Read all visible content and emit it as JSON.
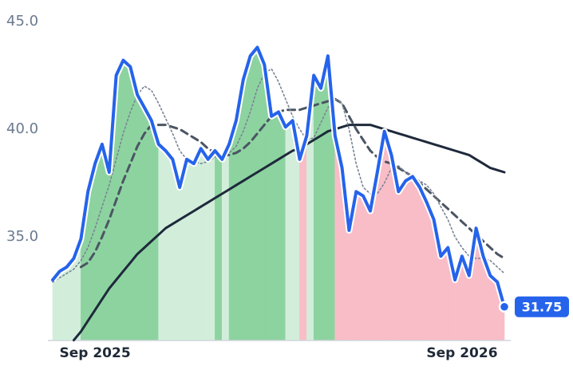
{
  "chart_data": {
    "type": "line",
    "categories": [
      null,
      null,
      null,
      null,
      null,
      null,
      "Sep 2025",
      null,
      null,
      null,
      null,
      null,
      null,
      null,
      null,
      null,
      null,
      null,
      null,
      null,
      null,
      null,
      null,
      null,
      null,
      null,
      null,
      null,
      null,
      null,
      null,
      null,
      null,
      null,
      null,
      null,
      null,
      null,
      null,
      null,
      null,
      null,
      null,
      null,
      null,
      null,
      null,
      null,
      null,
      null,
      null,
      null,
      null,
      null,
      null,
      null,
      null,
      null,
      "Sep 2026",
      null,
      null,
      null,
      null,
      null,
      null
    ],
    "series": [
      {
        "color": "#2563eb",
        "dash": "solid",
        "values": [
          33.0,
          33.4,
          33.6,
          34.0,
          34.9,
          37.1,
          38.4,
          39.3,
          38.0,
          42.5,
          43.2,
          42.9,
          41.6,
          41.0,
          40.4,
          39.3,
          39.0,
          38.6,
          37.3,
          38.6,
          38.4,
          39.1,
          38.6,
          39.0,
          38.6,
          39.3,
          40.4,
          42.3,
          43.4,
          43.8,
          43.0,
          40.6,
          40.8,
          40.1,
          40.4,
          38.6,
          39.7,
          42.5,
          41.9,
          43.4,
          39.7,
          38.2,
          35.3,
          37.1,
          36.9,
          36.2,
          38.0,
          39.9,
          38.8,
          37.1,
          37.6,
          37.8,
          37.3,
          36.6,
          35.8,
          34.1,
          34.5,
          33.0,
          34.1,
          33.2,
          35.4,
          34.1,
          33.2,
          32.9,
          31.75
        ]
      },
      {
        "color": "#7a8494",
        "dash": "dotted",
        "values": [
          32.9,
          33.1,
          33.3,
          33.5,
          33.9,
          34.5,
          35.4,
          36.4,
          37.4,
          38.6,
          39.8,
          40.8,
          41.6,
          42.0,
          41.8,
          41.2,
          40.5,
          39.8,
          39.0,
          38.6,
          38.5,
          38.4,
          38.5,
          38.7,
          38.8,
          38.9,
          39.2,
          39.9,
          40.8,
          41.9,
          42.6,
          42.8,
          42.2,
          41.4,
          40.6,
          40.0,
          39.5,
          39.6,
          40.3,
          41.0,
          41.4,
          41.2,
          40.0,
          38.4,
          37.3,
          37.0,
          37.0,
          37.5,
          38.2,
          38.3,
          38.0,
          37.8,
          37.6,
          37.4,
          37.0,
          36.4,
          35.8,
          35.0,
          34.5,
          34.1,
          34.0,
          34.0,
          33.9,
          33.6,
          33.3
        ]
      },
      {
        "color": "#4b5563",
        "dash": "dashed",
        "values": [
          null,
          null,
          null,
          null,
          33.6,
          33.8,
          34.3,
          35.0,
          35.8,
          36.7,
          37.6,
          38.4,
          39.2,
          39.8,
          40.2,
          40.2,
          40.2,
          40.1,
          40.0,
          39.8,
          39.6,
          39.4,
          39.1,
          38.9,
          38.8,
          38.8,
          38.9,
          39.1,
          39.4,
          39.8,
          40.2,
          40.6,
          40.8,
          40.9,
          40.9,
          40.9,
          41.0,
          41.1,
          41.2,
          41.3,
          41.4,
          41.2,
          40.6,
          40.0,
          39.5,
          39.0,
          38.7,
          38.5,
          38.4,
          38.2,
          38.0,
          37.8,
          37.5,
          37.2,
          36.9,
          36.6,
          36.3,
          36.0,
          35.7,
          35.4,
          35.1,
          34.8,
          34.5,
          34.2,
          34.0
        ]
      },
      {
        "color": "#1e293b",
        "dash": "solid",
        "values": [
          null,
          null,
          null,
          30.2,
          30.6,
          31.1,
          31.6,
          32.1,
          32.6,
          33.0,
          33.4,
          33.8,
          34.2,
          34.5,
          34.8,
          35.1,
          35.4,
          35.6,
          35.8,
          36.0,
          36.2,
          36.4,
          36.6,
          36.8,
          37.0,
          37.2,
          37.4,
          37.6,
          37.8,
          38.0,
          38.2,
          38.4,
          38.6,
          38.8,
          39.0,
          39.1,
          39.3,
          39.5,
          39.7,
          39.9,
          40.0,
          40.1,
          40.2,
          40.2,
          40.2,
          40.2,
          40.1,
          40.0,
          39.9,
          39.8,
          39.7,
          39.6,
          39.5,
          39.4,
          39.3,
          39.2,
          39.1,
          39.0,
          38.9,
          38.8,
          38.6,
          38.4,
          38.2,
          38.1,
          38.0
        ]
      }
    ],
    "zone_colors": {
      "strong": "#8dd3a0",
      "weak": "#d2eedb",
      "down": "#f9bdc8"
    },
    "ylim": [
      30.2,
      45.6
    ],
    "yticks": [
      {
        "value": 35,
        "label": "35.0"
      },
      {
        "value": 40,
        "label": "40.0"
      },
      {
        "value": 45,
        "label": "45.0"
      }
    ]
  }
}
